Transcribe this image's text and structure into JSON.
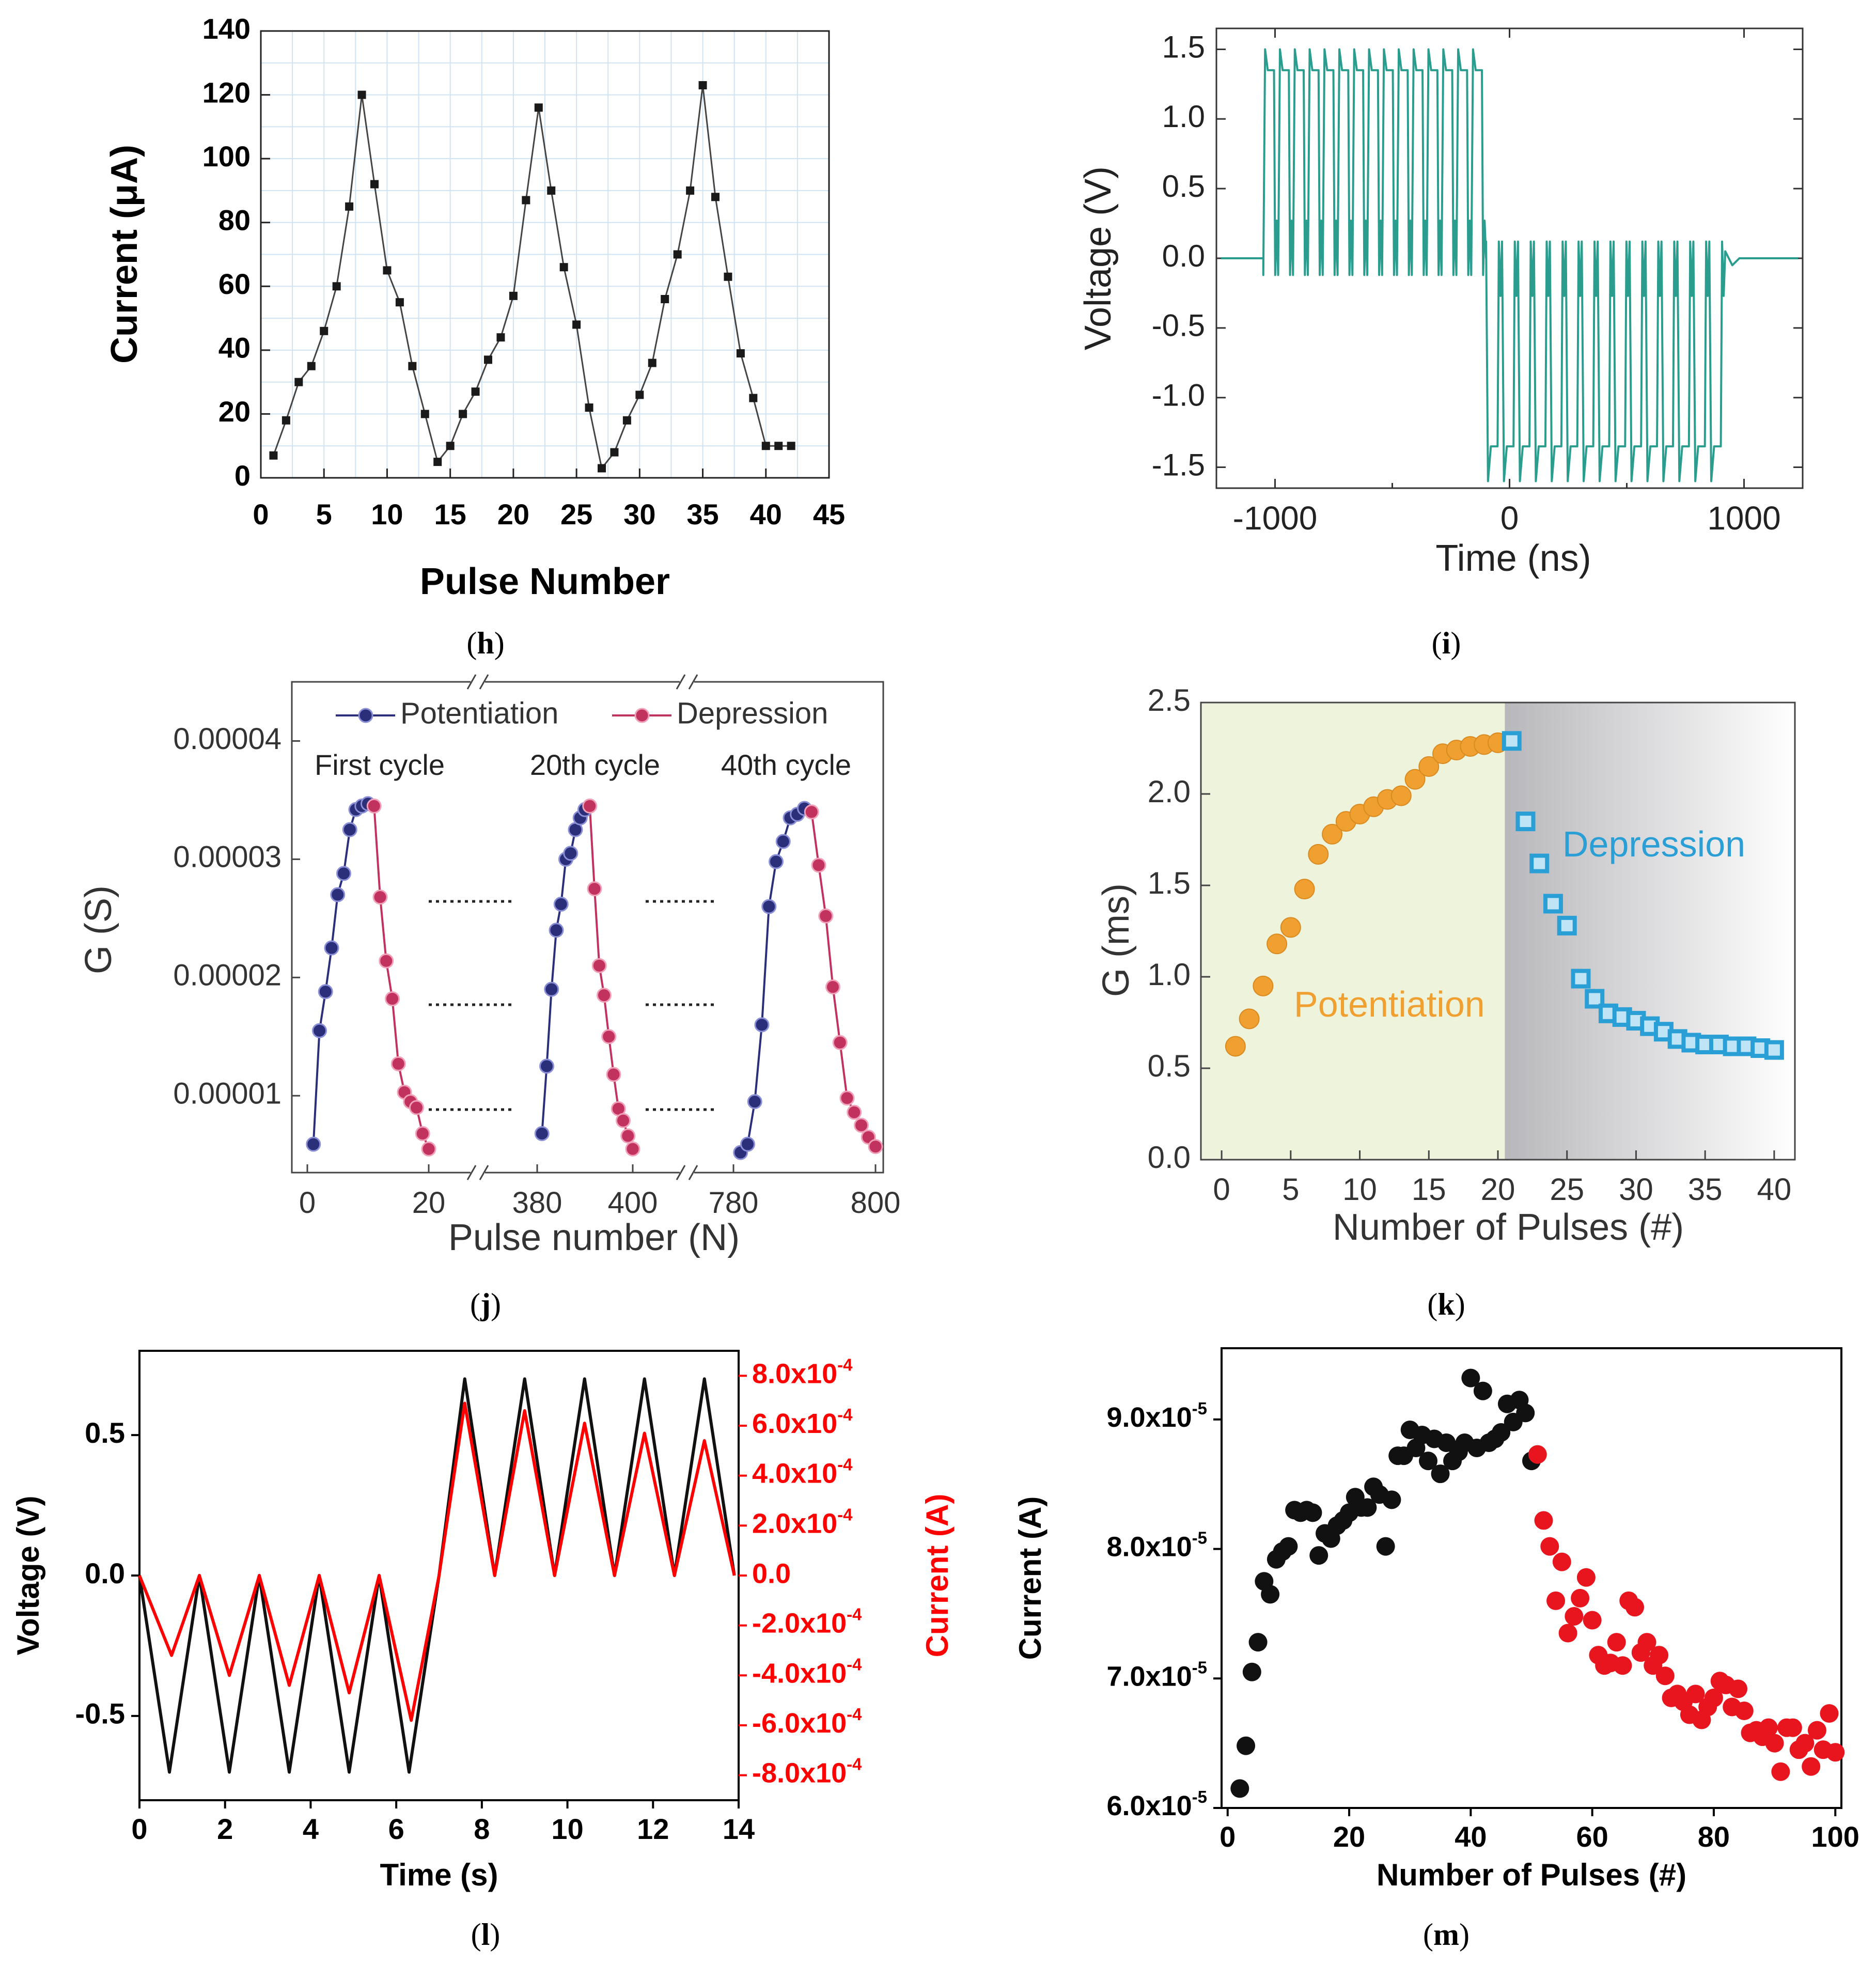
{
  "chart_data": [
    {
      "panel": "h",
      "type": "line",
      "caption": "h",
      "xlabel": "Pulse Number",
      "ylabel": "Current (μA)",
      "xlim": [
        0,
        45
      ],
      "ylim": [
        0,
        140
      ],
      "xticks": [
        0,
        5,
        10,
        15,
        20,
        25,
        30,
        35,
        40,
        45
      ],
      "yticks": [
        0,
        20,
        40,
        60,
        80,
        100,
        120,
        140
      ],
      "grid": true,
      "colors": {
        "series": "#1a1a1a"
      },
      "series": [
        {
          "x": [
            1,
            2,
            3,
            4,
            5,
            6,
            7,
            8,
            9,
            10,
            11,
            12,
            13,
            14,
            15,
            16,
            17,
            18,
            19,
            20,
            21,
            22,
            23,
            24,
            25,
            26,
            27,
            28,
            29,
            30,
            31,
            32,
            33,
            34,
            35,
            36,
            37,
            38,
            39,
            40,
            41,
            42
          ],
          "y": [
            7,
            18,
            30,
            35,
            46,
            60,
            85,
            120,
            92,
            65,
            55,
            35,
            20,
            5,
            10,
            20,
            27,
            37,
            44,
            57,
            87,
            116,
            90,
            66,
            48,
            22,
            3,
            8,
            18,
            26,
            36,
            56,
            70,
            90,
            123,
            88,
            63,
            39,
            25,
            10,
            10,
            10
          ]
        }
      ]
    },
    {
      "panel": "i",
      "type": "line",
      "caption": "i",
      "xlabel": "Time (ns)",
      "ylabel": "Voltage (V)",
      "xlim": [
        -1250,
        1250
      ],
      "ylim": [
        -1.65,
        1.65
      ],
      "xticks": [
        -1000,
        0,
        1000
      ],
      "yticks": [
        -1.5,
        -1.0,
        -0.5,
        0.0,
        0.5,
        1.0,
        1.5
      ],
      "colors": {
        "series": "#2a9d8f"
      },
      "pulses": {
        "positive": {
          "start": -1050,
          "end": -100,
          "count": 15,
          "high": 1.5,
          "plateau": 1.35,
          "undershoot": -0.12
        },
        "negative": {
          "start": -100,
          "end": 920,
          "count": 15,
          "low": -1.6,
          "plateau": -1.35,
          "overshoot": 0.12
        }
      }
    },
    {
      "panel": "j",
      "type": "line",
      "caption": "j",
      "xlabel": "Pulse number (N)",
      "ylabel": "G (S)",
      "yticks": [
        "0.00001",
        "0.00002",
        "0.00003",
        "0.00004"
      ],
      "ytick_values": [
        1e-05,
        2e-05,
        3e-05,
        4e-05
      ],
      "ylim": [
        3.5e-06,
        4.5e-05
      ],
      "xtick_labels": [
        "0",
        "20",
        "380",
        "400",
        "780",
        "800"
      ],
      "legend": [
        {
          "name": "Potentiation",
          "color": "#2b2f7a"
        },
        {
          "name": "Depression",
          "color": "#c2325e"
        }
      ],
      "annotations": [
        "First cycle",
        "20th cycle",
        "40th cycle"
      ],
      "segments": [
        {
          "x_range": [
            0,
            20
          ],
          "potentiation": {
            "x": [
              1,
              2,
              3,
              4,
              5,
              6,
              7,
              8,
              9,
              10
            ],
            "y": [
              5.9e-06,
              1.55e-05,
              1.88e-05,
              2.25e-05,
              2.7e-05,
              2.88e-05,
              3.25e-05,
              3.42e-05,
              3.45e-05,
              3.47e-05
            ]
          },
          "depression": {
            "x": [
              10,
              11,
              12,
              13,
              14,
              15,
              16,
              17,
              18,
              19,
              20
            ],
            "y": [
              3.47e-05,
              3.45e-05,
              2.68e-05,
              2.14e-05,
              1.82e-05,
              1.27e-05,
              1.03e-05,
              9.5e-06,
              9e-06,
              6.8e-06,
              5.5e-06
            ]
          }
        },
        {
          "x_range": [
            380,
            400
          ],
          "potentiation": {
            "x": [
              381,
              382,
              383,
              384,
              385,
              386,
              387,
              388,
              389,
              390
            ],
            "y": [
              6.8e-06,
              1.25e-05,
              1.9e-05,
              2.4e-05,
              2.62e-05,
              3e-05,
              3.05e-05,
              3.25e-05,
              3.35e-05,
              3.42e-05
            ]
          },
          "depression": {
            "x": [
              390,
              391,
              392,
              393,
              394,
              395,
              396,
              397,
              398,
              399,
              400
            ],
            "y": [
              3.47e-05,
              3.45e-05,
              2.75e-05,
              2.1e-05,
              1.85e-05,
              1.5e-05,
              1.18e-05,
              8.9e-06,
              7.9e-06,
              6.6e-06,
              5.5e-06
            ]
          }
        },
        {
          "x_range": [
            780,
            800
          ],
          "potentiation": {
            "x": [
              781,
              782,
              783,
              784,
              785,
              786,
              787,
              788,
              789,
              790
            ],
            "y": [
              5.2e-06,
              5.9e-06,
              9.5e-06,
              1.6e-05,
              2.6e-05,
              2.98e-05,
              3.15e-05,
              3.35e-05,
              3.38e-05,
              3.43e-05
            ]
          },
          "depression": {
            "x": [
              790,
              791,
              792,
              793,
              794,
              795,
              796,
              797,
              798,
              799,
              800
            ],
            "y": [
              3.45e-05,
              3.4e-05,
              2.95e-05,
              2.52e-05,
              1.92e-05,
              1.45e-05,
              9.8e-06,
              8.6e-06,
              7.5e-06,
              6.5e-06,
              5.7e-06
            ]
          }
        }
      ]
    },
    {
      "panel": "k",
      "type": "scatter",
      "caption": "k",
      "xlabel": "Number of Pulses (#)",
      "ylabel": "G (ms)",
      "xlim": [
        -1.5,
        41.5
      ],
      "ylim": [
        0.0,
        2.5
      ],
      "xticks": [
        0,
        5,
        10,
        15,
        20,
        25,
        30,
        35,
        40
      ],
      "yticks": [
        0.0,
        0.5,
        1.0,
        1.5,
        2.0,
        2.5
      ],
      "annotations": [
        "Potentiation",
        "Depression"
      ],
      "colors": {
        "potentiation": "#f0a030",
        "depression": "#2a9fd6",
        "left_bg": "#eef3dc"
      },
      "series": [
        {
          "name": "Potentiation",
          "x": [
            1,
            2,
            3,
            4,
            5,
            6,
            7,
            8,
            9,
            10,
            11,
            12,
            13,
            14,
            15,
            16,
            17,
            18,
            19,
            20
          ],
          "y": [
            0.62,
            0.77,
            0.95,
            1.18,
            1.27,
            1.48,
            1.67,
            1.78,
            1.85,
            1.89,
            1.93,
            1.97,
            1.99,
            2.08,
            2.15,
            2.22,
            2.24,
            2.26,
            2.27,
            2.28
          ]
        },
        {
          "name": "Depression",
          "x": [
            21,
            22,
            23,
            24,
            25,
            26,
            27,
            28,
            29,
            30,
            31,
            32,
            33,
            34,
            35,
            36,
            37,
            38,
            39,
            40
          ],
          "y": [
            2.29,
            1.85,
            1.62,
            1.4,
            1.28,
            0.99,
            0.88,
            0.8,
            0.78,
            0.76,
            0.73,
            0.7,
            0.66,
            0.64,
            0.63,
            0.63,
            0.62,
            0.62,
            0.61,
            0.6
          ]
        }
      ]
    },
    {
      "panel": "l",
      "type": "line",
      "caption": "l",
      "xlabel": "Time (s)",
      "ylabel": "Voltage (V)",
      "ylabel_right": "Current (A)",
      "xlim": [
        0,
        14
      ],
      "ylim": [
        -0.8,
        0.8
      ],
      "ylim_right": [
        -0.0009,
        0.0009
      ],
      "xticks": [
        0,
        2,
        4,
        6,
        8,
        10,
        12,
        14
      ],
      "yticks": [
        -0.5,
        0.0,
        0.5
      ],
      "yticks_right_labels": [
        "8.0x10-4",
        "6.0x10-4",
        "4.0x10-4",
        "2.0x10-4",
        "0.0",
        "-2.0x10-4",
        "-4.0x10-4",
        "-6.0x10-4",
        "-8.0x10-4"
      ],
      "yticks_right_values": [
        0.0008,
        0.0006,
        0.0004,
        0.0002,
        0.0,
        -0.0002,
        -0.0004,
        -0.0006,
        -0.0008
      ],
      "colors": {
        "voltage": "#111111",
        "current": "#ff0000",
        "right_axis": "#ff0000"
      },
      "series": [
        {
          "name": "Voltage",
          "x": [
            0,
            0.7,
            1.4,
            2.1,
            2.8,
            3.5,
            4.2,
            4.9,
            5.6,
            6.3,
            7.0,
            7.6,
            8.3,
            9.0,
            9.7,
            10.4,
            11.1,
            11.8,
            12.5,
            13.2,
            13.9
          ],
          "y": [
            0,
            -0.7,
            0,
            -0.7,
            0,
            -0.7,
            0,
            -0.7,
            0,
            -0.7,
            0,
            0.7,
            0,
            0.7,
            0,
            0.7,
            0,
            0.7,
            0,
            0.7,
            0
          ]
        },
        {
          "name": "Current",
          "x": [
            0,
            0.75,
            1.4,
            2.1,
            2.8,
            3.5,
            4.2,
            4.9,
            5.6,
            6.35,
            7.0,
            7.6,
            8.3,
            9.0,
            9.7,
            10.4,
            11.1,
            11.8,
            12.5,
            13.2,
            13.9
          ],
          "y": [
            0,
            -0.00032,
            0,
            -0.0004,
            0,
            -0.00044,
            0,
            -0.00047,
            0,
            -0.00058,
            0,
            0.00069,
            0,
            0.00066,
            0,
            0.00061,
            0,
            0.00057,
            0,
            0.00054,
            0
          ]
        }
      ]
    },
    {
      "panel": "m",
      "type": "scatter",
      "caption": "m",
      "xlabel": "Number of Pulses (#)",
      "ylabel": "Current (A)",
      "xlim": [
        -1,
        101
      ],
      "ylim": [
        6e-05,
        9.55e-05
      ],
      "xticks": [
        0,
        20,
        40,
        60,
        80,
        100
      ],
      "yticks_labels": [
        "6.0x10-5",
        "7.0x10-5",
        "8.0x10-5",
        "9.0x10-5"
      ],
      "yticks_values": [
        6e-05,
        7e-05,
        8e-05,
        9e-05
      ],
      "colors": {
        "first": "#111111",
        "second": "#e8141e"
      },
      "series": [
        {
          "x": [
            2,
            3,
            4,
            5,
            6,
            7,
            8,
            9,
            10,
            11,
            12,
            13,
            14,
            15,
            16,
            17,
            18,
            19,
            20,
            21,
            22,
            23,
            24,
            25,
            26,
            27,
            28,
            29,
            30,
            31,
            32,
            33,
            34,
            35,
            36,
            37,
            38,
            39,
            40,
            41,
            42,
            43,
            44,
            45,
            46,
            47,
            48,
            49,
            50
          ],
          "y": [
            6.15e-05,
            6.48e-05,
            7.05e-05,
            7.28e-05,
            7.75e-05,
            7.65e-05,
            7.92e-05,
            7.98e-05,
            8.02e-05,
            8.3e-05,
            8.28e-05,
            8.3e-05,
            8.28e-05,
            7.95e-05,
            8.12e-05,
            8.08e-05,
            8.18e-05,
            8.22e-05,
            8.28e-05,
            8.4e-05,
            8.32e-05,
            8.32e-05,
            8.48e-05,
            8.42e-05,
            8.02e-05,
            8.38e-05,
            8.72e-05,
            8.72e-05,
            8.92e-05,
            8.78e-05,
            8.88e-05,
            8.68e-05,
            8.85e-05,
            8.58e-05,
            8.82e-05,
            8.68e-05,
            8.75e-05,
            8.82e-05,
            9.32e-05,
            8.78e-05,
            9.22e-05,
            8.82e-05,
            8.85e-05,
            8.9e-05,
            9.12e-05,
            8.98e-05,
            9.15e-05,
            9.05e-05,
            8.68e-05
          ]
        },
        {
          "x": [
            51,
            52,
            53,
            54,
            55,
            56,
            57,
            58,
            59,
            60,
            61,
            62,
            63,
            64,
            65,
            66,
            67,
            68,
            69,
            70,
            71,
            72,
            73,
            74,
            75,
            76,
            77,
            78,
            79,
            80,
            81,
            82,
            83,
            84,
            85,
            86,
            87,
            88,
            89,
            90,
            91,
            92,
            93,
            94,
            95,
            96,
            97,
            98,
            99,
            100
          ],
          "y": [
            8.73e-05,
            8.22e-05,
            8.02e-05,
            7.6e-05,
            7.9e-05,
            7.35e-05,
            7.48e-05,
            7.62e-05,
            7.78e-05,
            7.45e-05,
            7.18e-05,
            7.1e-05,
            7.12e-05,
            7.28e-05,
            7.1e-05,
            7.6e-05,
            7.55e-05,
            7.2e-05,
            7.28e-05,
            7.1e-05,
            7.18e-05,
            7.02e-05,
            6.85e-05,
            6.88e-05,
            6.82e-05,
            6.72e-05,
            6.88e-05,
            6.68e-05,
            6.78e-05,
            6.85e-05,
            6.98e-05,
            6.95e-05,
            6.78e-05,
            6.92e-05,
            6.75e-05,
            6.58e-05,
            6.6e-05,
            6.55e-05,
            6.62e-05,
            6.5e-05,
            6.28e-05,
            6.62e-05,
            6.62e-05,
            6.45e-05,
            6.5e-05,
            6.32e-05,
            6.6e-05,
            6.45e-05,
            6.73e-05,
            6.43e-05
          ]
        }
      ]
    }
  ]
}
